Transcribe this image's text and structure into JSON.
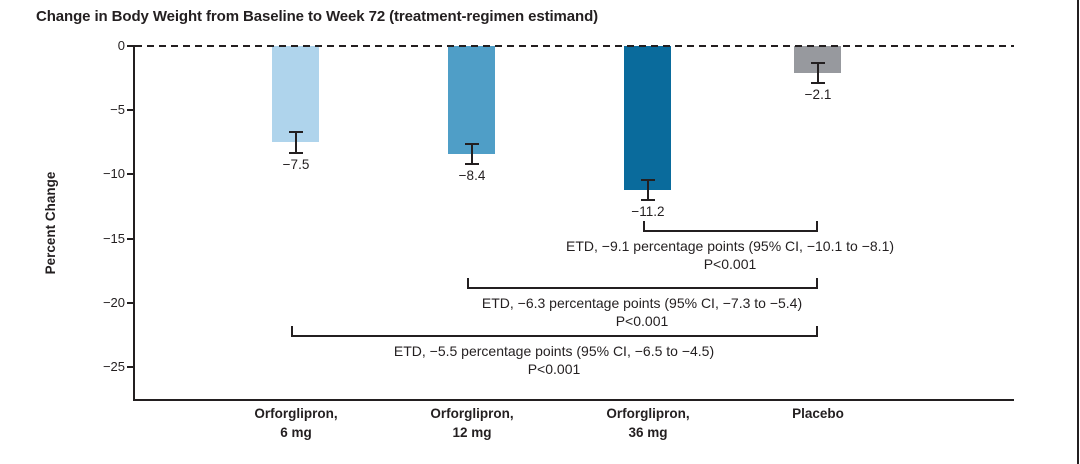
{
  "chart_data": {
    "type": "bar",
    "title": "Change in Body Weight from Baseline to Week 72 (treatment-regimen estimand)",
    "ylabel": "Percent Change",
    "xlabel": "",
    "ylim": [
      -28,
      0
    ],
    "yticks": [
      0,
      -5,
      -10,
      -15,
      -20,
      -25
    ],
    "ytick_labels": [
      "0",
      "−5",
      "−10",
      "−15",
      "−20",
      "−25"
    ],
    "zero_line_style": "dashed",
    "grid": false,
    "legend": false,
    "axis_color": "#231f20",
    "bars": [
      {
        "category_line1": "Orforglipron,",
        "category_line2": "6 mg",
        "value": -7.5,
        "value_label": "−7.5",
        "error_bar": 0.8,
        "color": "#afd4ec"
      },
      {
        "category_line1": "Orforglipron,",
        "category_line2": "12 mg",
        "value": -8.4,
        "value_label": "−8.4",
        "error_bar": 0.8,
        "color": "#4f9ec7"
      },
      {
        "category_line1": "Orforglipron,",
        "category_line2": "36 mg",
        "value": -11.2,
        "value_label": "−11.2",
        "error_bar": 0.8,
        "color": "#0a6b9c"
      },
      {
        "category_line1": "Placebo",
        "category_line2": "",
        "value": -2.1,
        "value_label": "−2.1",
        "error_bar": 0.8,
        "color": "#97999e"
      }
    ],
    "comparisons": [
      {
        "from_bar": 2,
        "to_bar": 3,
        "text": "ETD, −9.1 percentage points (95% CI, −10.1 to −8.1)",
        "p_value": "P<0.001"
      },
      {
        "from_bar": 1,
        "to_bar": 3,
        "text": "ETD, −6.3 percentage points (95% CI, −7.3 to −5.4)",
        "p_value": "P<0.001"
      },
      {
        "from_bar": 0,
        "to_bar": 3,
        "text": "ETD, −5.5 percentage points (95% CI, −6.5 to −4.5)",
        "p_value": "P<0.001"
      }
    ]
  }
}
